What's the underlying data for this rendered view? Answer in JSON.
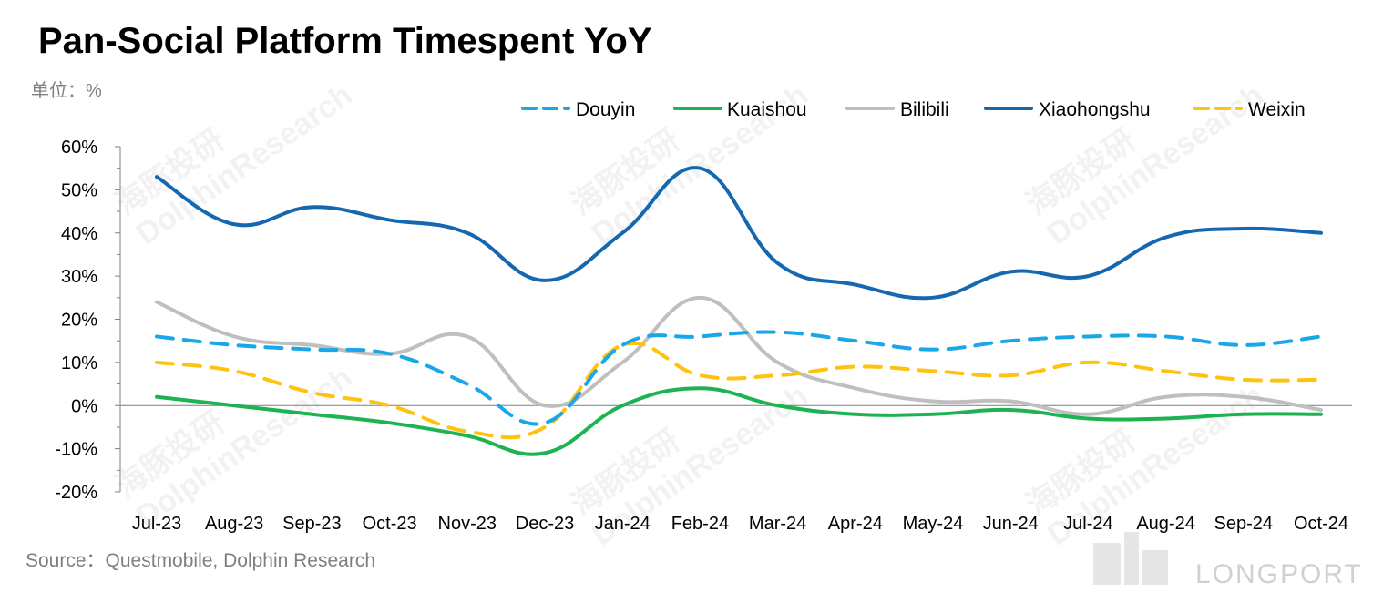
{
  "header": {
    "title": "Pan-Social Platform Timespent YoY",
    "unit": "单位：%"
  },
  "footer": {
    "source": "Source：Questmobile, Dolphin Research",
    "logo": "LONGPORT"
  },
  "watermark": {
    "cn": "海豚投研",
    "en": "DolphinResearch"
  },
  "chart_data": {
    "type": "line",
    "title": "Pan-Social Platform Timespent YoY",
    "categories": [
      "Jul-23",
      "Aug-23",
      "Sep-23",
      "Oct-23",
      "Nov-23",
      "Dec-23",
      "Jan-24",
      "Feb-24",
      "Mar-24",
      "Apr-24",
      "May-24",
      "Jun-24",
      "Jul-24",
      "Aug-24",
      "Sep-24",
      "Oct-24"
    ],
    "ylim": [
      -20,
      60
    ],
    "yticks": [
      -20,
      -10,
      0,
      10,
      20,
      30,
      40,
      50,
      60
    ],
    "ytick_labels": [
      "-20%",
      "-10%",
      "0%",
      "10%",
      "20%",
      "30%",
      "40%",
      "50%",
      "60%"
    ],
    "legend_position": "top-right",
    "grid": false,
    "series": [
      {
        "name": "Douyin",
        "color": "#1aa7e8",
        "dash": true,
        "values": [
          16,
          14,
          13,
          12,
          5,
          -4,
          14,
          16,
          17,
          15,
          13,
          15,
          16,
          16,
          14,
          16
        ]
      },
      {
        "name": "Kuaishou",
        "color": "#1db352",
        "dash": false,
        "values": [
          2,
          0,
          -2,
          -4,
          -7,
          -11,
          0,
          4,
          0,
          -2,
          -2,
          -1,
          -3,
          -3,
          -2,
          -2
        ]
      },
      {
        "name": "Bilibili",
        "color": "#bfbfbf",
        "dash": false,
        "values": [
          24,
          16,
          14,
          12,
          16,
          0,
          10,
          25,
          10,
          4,
          1,
          1,
          -2,
          2,
          2,
          -1
        ]
      },
      {
        "name": "Xiaohongshu",
        "color": "#1568b0",
        "dash": false,
        "values": [
          53,
          42,
          46,
          43,
          40,
          29,
          40,
          55,
          33,
          28,
          25,
          31,
          30,
          39,
          41,
          40
        ]
      },
      {
        "name": "Weixin",
        "color": "#ffc20e",
        "dash": true,
        "values": [
          10,
          8,
          3,
          0,
          -6,
          -5,
          14,
          7,
          7,
          9,
          8,
          7,
          10,
          8,
          6,
          6
        ]
      }
    ]
  }
}
